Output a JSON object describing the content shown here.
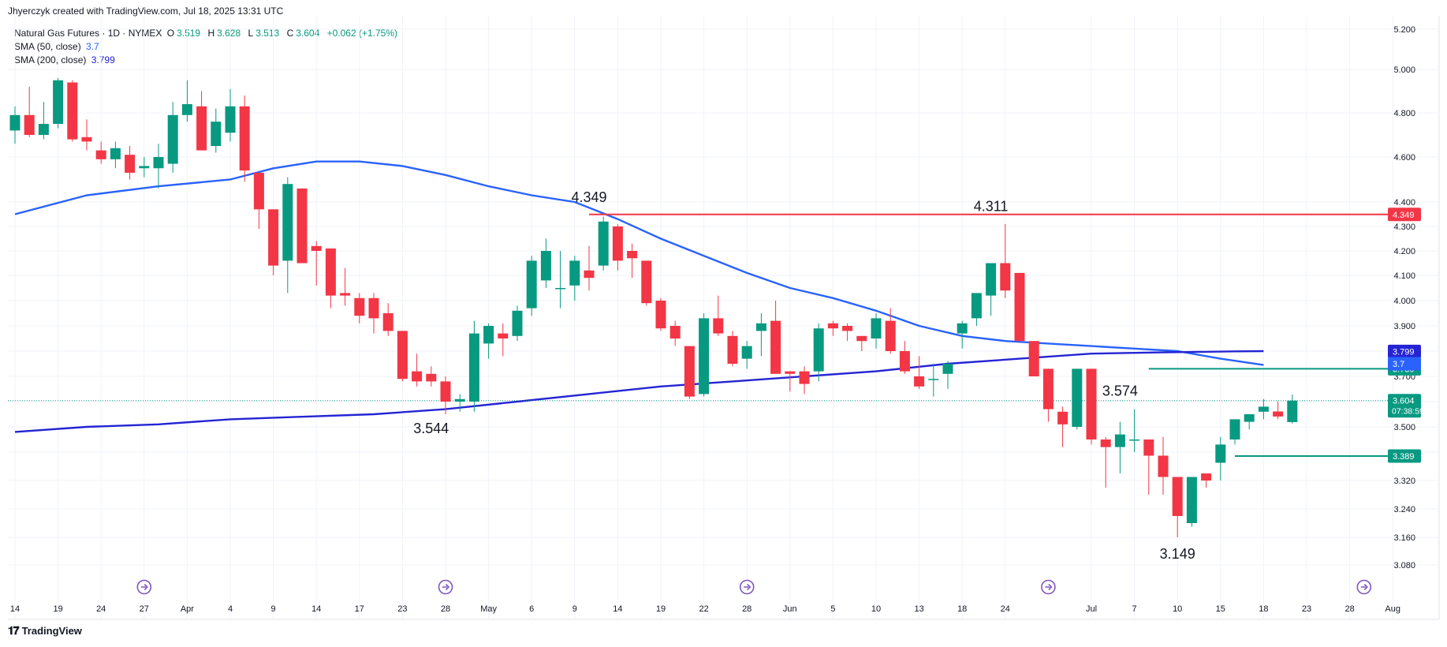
{
  "header": {
    "credit": "Jhyerczyk created with TradingView.com, Jul 18, 2025 13:31 UTC"
  },
  "legend": {
    "symbol": "Natural Gas Futures · 1D · NYMEX",
    "ohlc": {
      "o_label": "O",
      "o": "3.519",
      "h_label": "H",
      "h": "3.628",
      "l_label": "L",
      "l": "3.513",
      "c_label": "C",
      "c": "3.604",
      "change": "+0.062 (+1.75%)"
    },
    "sma50": {
      "label": "SMA (50, close)",
      "value": "3.7"
    },
    "sma200": {
      "label": "SMA (200, close)",
      "value": "3.799"
    }
  },
  "footer": {
    "brand": "TradingView",
    "logo_icon": "tradingview-logo-icon"
  },
  "colors": {
    "up": "#089981",
    "down": "#f23645",
    "sma50": "#2962ff",
    "sma200": "#2424d4",
    "resistance": "#f23645",
    "support": "#089981",
    "grid": "#f0f3fa"
  },
  "chart_data": {
    "type": "candlestick",
    "timeframe": "1D",
    "ylim": [
      3.03,
      5.25
    ],
    "y_ticks": [
      "5.200",
      "5.000",
      "4.800",
      "4.600",
      "4.400",
      "4.300",
      "4.200",
      "4.100",
      "4.000",
      "3.900",
      "3.800",
      "3.700",
      "3.600",
      "3.500",
      "3.400",
      "3.320",
      "3.240",
      "3.160",
      "3.080"
    ],
    "y_tick_values": [
      5.2,
      5.0,
      4.8,
      4.6,
      4.4,
      4.3,
      4.2,
      4.1,
      4.0,
      3.9,
      3.8,
      3.7,
      3.6,
      3.5,
      3.4,
      3.32,
      3.24,
      3.16,
      3.08
    ],
    "x_tick_labels": [
      {
        "label": "14",
        "bar": 0
      },
      {
        "label": "19",
        "bar": 3
      },
      {
        "label": "24",
        "bar": 6
      },
      {
        "label": "27",
        "bar": 9
      },
      {
        "label": "Apr",
        "bar": 12
      },
      {
        "label": "4",
        "bar": 15
      },
      {
        "label": "9",
        "bar": 18
      },
      {
        "label": "14",
        "bar": 21
      },
      {
        "label": "17",
        "bar": 24
      },
      {
        "label": "23",
        "bar": 27
      },
      {
        "label": "28",
        "bar": 30
      },
      {
        "label": "May",
        "bar": 33
      },
      {
        "label": "6",
        "bar": 36
      },
      {
        "label": "9",
        "bar": 39
      },
      {
        "label": "14",
        "bar": 42
      },
      {
        "label": "19",
        "bar": 45
      },
      {
        "label": "22",
        "bar": 48
      },
      {
        "label": "28",
        "bar": 51
      },
      {
        "label": "Jun",
        "bar": 54
      },
      {
        "label": "5",
        "bar": 57
      },
      {
        "label": "10",
        "bar": 60
      },
      {
        "label": "13",
        "bar": 63
      },
      {
        "label": "18",
        "bar": 66
      },
      {
        "label": "24",
        "bar": 69
      },
      {
        "label": "Jul",
        "bar": 75
      },
      {
        "label": "7",
        "bar": 78
      },
      {
        "label": "10",
        "bar": 81
      },
      {
        "label": "15",
        "bar": 84
      },
      {
        "label": "18",
        "bar": 87
      },
      {
        "label": "23",
        "bar": 90
      },
      {
        "label": "28",
        "bar": 93
      },
      {
        "label": "Aug",
        "bar": 96
      }
    ],
    "ohlc": [
      [
        4.72,
        4.83,
        4.66,
        4.79
      ],
      [
        4.79,
        4.92,
        4.69,
        4.7
      ],
      [
        4.7,
        4.85,
        4.68,
        4.75
      ],
      [
        4.75,
        4.96,
        4.73,
        4.95
      ],
      [
        4.94,
        4.95,
        4.67,
        4.68
      ],
      [
        4.69,
        4.77,
        4.63,
        4.67
      ],
      [
        4.63,
        4.67,
        4.57,
        4.59
      ],
      [
        4.59,
        4.67,
        4.55,
        4.64
      ],
      [
        4.61,
        4.65,
        4.5,
        4.53
      ],
      [
        4.55,
        4.6,
        4.51,
        4.56
      ],
      [
        4.55,
        4.66,
        4.46,
        4.6
      ],
      [
        4.57,
        4.85,
        4.53,
        4.79
      ],
      [
        4.79,
        4.95,
        4.76,
        4.84
      ],
      [
        4.83,
        4.9,
        4.63,
        4.63
      ],
      [
        4.65,
        4.82,
        4.62,
        4.76
      ],
      [
        4.71,
        4.91,
        4.67,
        4.83
      ],
      [
        4.83,
        4.88,
        4.49,
        4.54
      ],
      [
        4.53,
        4.53,
        4.29,
        4.37
      ],
      [
        4.37,
        4.37,
        4.1,
        4.14
      ],
      [
        4.16,
        4.51,
        4.03,
        4.48
      ],
      [
        4.46,
        4.46,
        4.15,
        4.15
      ],
      [
        4.22,
        4.24,
        4.06,
        4.2
      ],
      [
        4.21,
        4.21,
        3.97,
        4.02
      ],
      [
        4.03,
        4.13,
        3.98,
        4.02
      ],
      [
        4.01,
        4.03,
        3.91,
        3.94
      ],
      [
        4.01,
        4.03,
        3.87,
        3.93
      ],
      [
        3.95,
        3.99,
        3.86,
        3.88
      ],
      [
        3.88,
        3.88,
        3.68,
        3.69
      ],
      [
        3.72,
        3.79,
        3.66,
        3.68
      ],
      [
        3.71,
        3.74,
        3.66,
        3.68
      ],
      [
        3.68,
        3.7,
        3.55,
        3.6
      ],
      [
        3.6,
        3.63,
        3.56,
        3.61
      ],
      [
        3.6,
        3.92,
        3.56,
        3.87
      ],
      [
        3.83,
        3.91,
        3.77,
        3.9
      ],
      [
        3.87,
        3.91,
        3.78,
        3.85
      ],
      [
        3.86,
        3.98,
        3.84,
        3.96
      ],
      [
        3.97,
        4.18,
        3.94,
        4.16
      ],
      [
        4.08,
        4.25,
        4.05,
        4.2
      ],
      [
        4.05,
        4.2,
        3.97,
        4.05
      ],
      [
        4.06,
        4.18,
        4.0,
        4.16
      ],
      [
        4.12,
        4.22,
        4.04,
        4.09
      ],
      [
        4.14,
        4.34,
        4.12,
        4.32
      ],
      [
        4.3,
        4.31,
        4.12,
        4.16
      ],
      [
        4.2,
        4.23,
        4.09,
        4.17
      ],
      [
        4.16,
        4.16,
        3.98,
        3.99
      ],
      [
        4.0,
        4.01,
        3.88,
        3.89
      ],
      [
        3.9,
        3.92,
        3.82,
        3.85
      ],
      [
        3.82,
        3.82,
        3.61,
        3.62
      ],
      [
        3.63,
        3.95,
        3.62,
        3.93
      ],
      [
        3.93,
        4.02,
        3.86,
        3.87
      ],
      [
        3.86,
        3.88,
        3.74,
        3.75
      ],
      [
        3.77,
        3.84,
        3.73,
        3.82
      ],
      [
        3.88,
        3.95,
        3.78,
        3.91
      ],
      [
        3.92,
        4.0,
        3.73,
        3.71
      ],
      [
        3.72,
        3.72,
        3.64,
        3.71
      ],
      [
        3.72,
        3.74,
        3.63,
        3.67
      ],
      [
        3.72,
        3.91,
        3.68,
        3.89
      ],
      [
        3.91,
        3.92,
        3.86,
        3.89
      ],
      [
        3.9,
        3.91,
        3.84,
        3.88
      ],
      [
        3.86,
        3.86,
        3.8,
        3.84
      ],
      [
        3.85,
        3.95,
        3.81,
        3.93
      ],
      [
        3.92,
        3.97,
        3.79,
        3.8
      ],
      [
        3.8,
        3.84,
        3.71,
        3.72
      ],
      [
        3.7,
        3.78,
        3.65,
        3.66
      ],
      [
        3.69,
        3.75,
        3.62,
        3.69
      ],
      [
        3.71,
        3.76,
        3.65,
        3.75
      ],
      [
        3.87,
        3.92,
        3.81,
        3.91
      ],
      [
        3.93,
        4.03,
        3.9,
        4.03
      ],
      [
        4.02,
        4.13,
        3.94,
        4.15
      ],
      [
        4.15,
        4.31,
        4.01,
        4.04
      ],
      [
        4.11,
        4.11,
        3.85,
        3.84
      ],
      [
        3.84,
        3.84,
        3.7,
        3.7
      ],
      [
        3.73,
        3.73,
        3.52,
        3.57
      ],
      [
        3.56,
        3.58,
        3.42,
        3.51
      ],
      [
        3.5,
        3.73,
        3.49,
        3.73
      ],
      [
        3.73,
        3.73,
        3.43,
        3.45
      ],
      [
        3.45,
        3.46,
        3.3,
        3.42
      ],
      [
        3.42,
        3.52,
        3.34,
        3.47
      ],
      [
        3.45,
        3.57,
        3.4,
        3.45
      ],
      [
        3.45,
        3.45,
        3.28,
        3.39
      ],
      [
        3.39,
        3.46,
        3.28,
        3.33
      ],
      [
        3.33,
        3.33,
        3.16,
        3.22
      ],
      [
        3.2,
        3.33,
        3.19,
        3.33
      ],
      [
        3.34,
        3.34,
        3.3,
        3.32
      ],
      [
        3.37,
        3.46,
        3.32,
        3.43
      ],
      [
        3.45,
        3.53,
        3.43,
        3.53
      ],
      [
        3.52,
        3.55,
        3.49,
        3.55
      ],
      [
        3.56,
        3.61,
        3.53,
        3.58
      ],
      [
        3.561,
        3.6,
        3.53,
        3.541
      ],
      [
        3.519,
        3.628,
        3.513,
        3.604
      ]
    ],
    "sma50": [
      {
        "bar": 0,
        "y": 4.35
      },
      {
        "bar": 5,
        "y": 4.43
      },
      {
        "bar": 10,
        "y": 4.47
      },
      {
        "bar": 15,
        "y": 4.5
      },
      {
        "bar": 18,
        "y": 4.55
      },
      {
        "bar": 21,
        "y": 4.58
      },
      {
        "bar": 24,
        "y": 4.58
      },
      {
        "bar": 27,
        "y": 4.56
      },
      {
        "bar": 30,
        "y": 4.52
      },
      {
        "bar": 33,
        "y": 4.47
      },
      {
        "bar": 36,
        "y": 4.43
      },
      {
        "bar": 39,
        "y": 4.4
      },
      {
        "bar": 42,
        "y": 4.33
      },
      {
        "bar": 45,
        "y": 4.25
      },
      {
        "bar": 48,
        "y": 4.18
      },
      {
        "bar": 51,
        "y": 4.11
      },
      {
        "bar": 54,
        "y": 4.05
      },
      {
        "bar": 57,
        "y": 4.01
      },
      {
        "bar": 60,
        "y": 3.96
      },
      {
        "bar": 63,
        "y": 3.9
      },
      {
        "bar": 66,
        "y": 3.86
      },
      {
        "bar": 69,
        "y": 3.84
      },
      {
        "bar": 72,
        "y": 3.83
      },
      {
        "bar": 75,
        "y": 3.82
      },
      {
        "bar": 78,
        "y": 3.81
      },
      {
        "bar": 81,
        "y": 3.8
      },
      {
        "bar": 84,
        "y": 3.77
      },
      {
        "bar": 87,
        "y": 3.745
      }
    ],
    "sma200": [
      {
        "bar": 0,
        "y": 3.48
      },
      {
        "bar": 5,
        "y": 3.5
      },
      {
        "bar": 10,
        "y": 3.51
      },
      {
        "bar": 15,
        "y": 3.53
      },
      {
        "bar": 20,
        "y": 3.54
      },
      {
        "bar": 25,
        "y": 3.55
      },
      {
        "bar": 30,
        "y": 3.57
      },
      {
        "bar": 35,
        "y": 3.6
      },
      {
        "bar": 40,
        "y": 3.63
      },
      {
        "bar": 45,
        "y": 3.66
      },
      {
        "bar": 50,
        "y": 3.68
      },
      {
        "bar": 55,
        "y": 3.7
      },
      {
        "bar": 60,
        "y": 3.72
      },
      {
        "bar": 65,
        "y": 3.75
      },
      {
        "bar": 70,
        "y": 3.77
      },
      {
        "bar": 75,
        "y": 3.79
      },
      {
        "bar": 80,
        "y": 3.795
      },
      {
        "bar": 85,
        "y": 3.799
      },
      {
        "bar": 87,
        "y": 3.8
      }
    ],
    "hlines": [
      {
        "name": "resistance",
        "value": 4.349,
        "from_bar": 40,
        "color": "#f23645",
        "label": "4.349"
      },
      {
        "name": "support-upper",
        "value": 3.73,
        "from_bar": 79,
        "color": "#089981",
        "label": "3.730"
      },
      {
        "name": "support-lower",
        "value": 3.389,
        "from_bar": 85,
        "color": "#089981",
        "label": "3.389"
      }
    ],
    "price_tags": [
      {
        "value": 3.799,
        "label": "3.799",
        "color": "#2424d4",
        "text_color": "#ffffff"
      },
      {
        "value": 3.7,
        "label": "3.7",
        "color": "#2962ff",
        "text_color": "#ffffff"
      },
      {
        "value": 3.604,
        "label": "3.604",
        "sub": "07:38:59",
        "color": "#089981",
        "text_color": "#ffffff"
      }
    ],
    "last_price": 3.604,
    "annotations": [
      {
        "text": "4.349",
        "bar": 40,
        "price": 4.349,
        "pos": "above"
      },
      {
        "text": "4.311",
        "bar": 68,
        "price": 4.311,
        "pos": "above"
      },
      {
        "text": "3.544",
        "bar": 29,
        "price": 3.544,
        "pos": "below"
      },
      {
        "text": "3.574",
        "bar": 77,
        "price": 3.574,
        "pos": "above"
      },
      {
        "text": "3.149",
        "bar": 81,
        "price": 3.149,
        "pos": "below"
      }
    ],
    "event_markers": [
      9,
      30,
      51,
      72,
      94
    ]
  }
}
